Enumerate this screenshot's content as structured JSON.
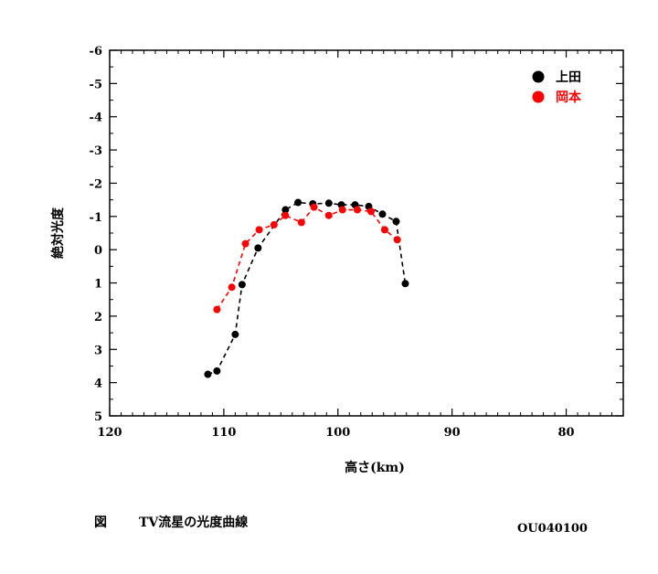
{
  "caption": {
    "prefix": "図",
    "title": "TV流星の光度曲線",
    "figure_id": "OU040100"
  },
  "chart_data": {
    "type": "line",
    "xlabel": "高さ(km)",
    "ylabel": "絶対光度",
    "xlim": [
      120,
      75
    ],
    "ylim": [
      5,
      -6
    ],
    "x_ticks": [
      120,
      110,
      100,
      90,
      80
    ],
    "y_ticks": [
      -6,
      -5,
      -4,
      -3,
      -2,
      -1,
      0,
      1,
      2,
      3,
      4,
      5
    ],
    "x_tick_labels": [
      "120",
      "110",
      "100",
      "90",
      "80"
    ],
    "y_tick_labels": [
      "-6",
      "-5",
      "-4",
      "-3",
      "-2",
      "-1",
      "0",
      "1",
      "2",
      "3",
      "4",
      "5"
    ],
    "legend_position": "top-right",
    "series": [
      {
        "name": "上田",
        "color": "#000000",
        "x": [
          111.4,
          110.6,
          109.0,
          108.4,
          107.0,
          104.6,
          103.5,
          102.2,
          100.8,
          99.7,
          98.5,
          97.3,
          96.1,
          94.9,
          94.1
        ],
        "y": [
          3.75,
          3.65,
          2.55,
          1.05,
          -0.05,
          -1.2,
          -1.42,
          -1.38,
          -1.4,
          -1.35,
          -1.35,
          -1.3,
          -1.07,
          -0.85,
          1.02
        ]
      },
      {
        "name": "岡本",
        "color": "#ff0000",
        "x": [
          110.6,
          109.3,
          108.1,
          106.9,
          105.6,
          104.6,
          103.2,
          102.1,
          100.8,
          99.6,
          98.3,
          97.1,
          95.9,
          94.8
        ],
        "y": [
          1.8,
          1.13,
          -0.18,
          -0.6,
          -0.75,
          -1.03,
          -0.82,
          -1.28,
          -1.03,
          -1.2,
          -1.2,
          -1.15,
          -0.6,
          -0.3
        ]
      }
    ]
  }
}
